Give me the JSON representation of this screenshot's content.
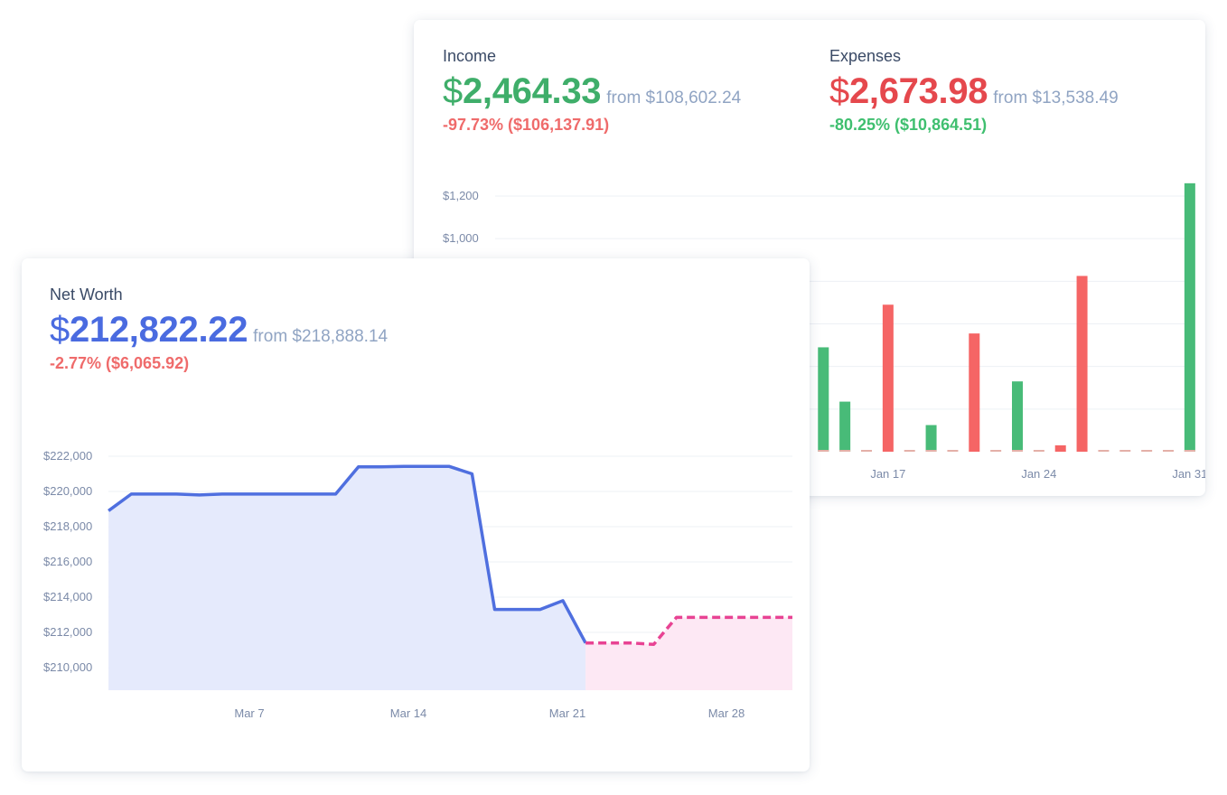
{
  "income": {
    "title": "Income",
    "currency": "$",
    "value": "2,464.33",
    "from": "from $108,602.24",
    "change": "-97.73% ($106,137.91)"
  },
  "expenses": {
    "title": "Expenses",
    "currency": "$",
    "value": "2,673.98",
    "from": "from $13,538.49",
    "change": "-80.25% ($10,864.51)"
  },
  "net_worth": {
    "title": "Net Worth",
    "currency": "$",
    "value": "212,822.22",
    "from": "from $218,888.14",
    "change": "-2.77% ($6,065.92)"
  },
  "colors": {
    "income": "#48bb78",
    "expense": "#f56565",
    "expense_zero_dash": "#e4b0a8",
    "net_worth_line": "#4f6fdf",
    "net_worth_area": "#e5eafc",
    "projection_line": "#e84393",
    "projection_area": "#fde8f4",
    "grid": "#edf0f5"
  },
  "chart_data": [
    {
      "type": "bar",
      "title": "",
      "ylim": [
        0,
        1200
      ],
      "y_ticks": [
        "$1,200",
        "$1,000"
      ],
      "y_tick_values": [
        1200,
        1000
      ],
      "x_tick_labels": [
        "Jan 17",
        "Jan 24",
        "Jan 31"
      ],
      "x_tick_days": [
        17,
        24,
        31
      ],
      "series": [
        {
          "name": "Income",
          "kind": "income",
          "days": [
            14,
            15,
            19,
            23,
            31
          ],
          "values": [
            490,
            235,
            125,
            330,
            1260
          ]
        },
        {
          "name": "Expenses",
          "kind": "expense",
          "days": [
            14,
            15,
            16,
            17,
            18,
            19,
            20,
            21,
            22,
            23,
            24,
            25,
            26,
            27,
            28,
            29,
            30,
            31
          ],
          "values": [
            0,
            0,
            0,
            690,
            0,
            0,
            0,
            555,
            0,
            0,
            0,
            30,
            825,
            0,
            0,
            0,
            0,
            0
          ]
        }
      ]
    },
    {
      "type": "area",
      "title": "Net Worth",
      "ylim": [
        208800,
        222000
      ],
      "y_ticks": [
        "$222,000",
        "$220,000",
        "$218,000",
        "$216,000",
        "$214,000",
        "$212,000",
        "$210,000"
      ],
      "y_tick_values": [
        222000,
        220000,
        218000,
        216000,
        214000,
        212000,
        210000
      ],
      "x_tick_labels": [
        "Mar 7",
        "Mar 14",
        "Mar 21",
        "Mar 28"
      ],
      "x_tick_days": [
        7,
        14,
        21,
        28
      ],
      "series": [
        {
          "name": "Net Worth",
          "kind": "actual",
          "x": [
            0.8,
            1.8,
            2.8,
            3.8,
            4.8,
            5.8,
            6.8,
            7.8,
            8.8,
            9.8,
            10.8,
            11.8,
            12.8,
            13.8,
            14.8,
            15.8,
            16.8,
            17.8,
            18.8,
            19.8,
            20.8,
            21.8
          ],
          "values": [
            218900,
            219850,
            219850,
            219850,
            219800,
            219850,
            219850,
            219850,
            219850,
            219850,
            219850,
            221400,
            221400,
            221420,
            221420,
            221420,
            221000,
            213300,
            213300,
            213300,
            213800,
            211400
          ]
        },
        {
          "name": "Projection",
          "kind": "projection",
          "x": [
            21.8,
            22.8,
            23.8,
            24.8,
            25.8,
            26.8,
            27.8,
            28.8,
            29.8,
            30.8,
            31.8
          ],
          "values": [
            211400,
            211400,
            211400,
            211320,
            212850,
            212850,
            212850,
            212850,
            212850,
            212850,
            212850
          ]
        }
      ]
    }
  ]
}
